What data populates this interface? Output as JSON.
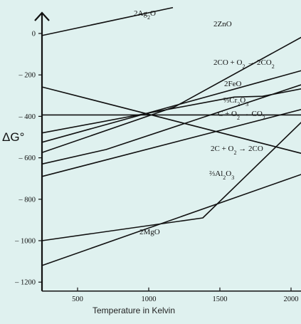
{
  "chart_data": {
    "type": "line",
    "title": "",
    "xlabel": "Temperature in Kelvin",
    "ylabel": "ΔG°",
    "xlim": [
      250,
      2380
    ],
    "ylim": [
      -1250,
      80
    ],
    "xticks": [
      500,
      1000,
      1500,
      2000
    ],
    "xtick_labels": [
      "500",
      "1000",
      "1500",
      "2000"
    ],
    "yticks": [
      0,
      -200,
      -400,
      -600,
      -800,
      -1000,
      -1200
    ],
    "ytick_labels": [
      "0",
      "– 200",
      "– 400",
      "– 600",
      "– 800",
      "– 1000",
      "– 1200"
    ],
    "grid": false,
    "series": [
      {
        "name": "2Ag₂O",
        "label_html": "2Ag<tspan baseline-shift=\"sub\" font-size=\"8\">2</tspan>O",
        "x": [
          250,
          1170
        ],
        "y": [
          -10,
          125
        ]
      },
      {
        "name": "2ZnO",
        "label_html": "2ZnO",
        "x": [
          250,
          1180,
          2280
        ],
        "y": [
          -575,
          -355,
          60
        ]
      },
      {
        "name": "2CO + O₂ → 2CO₂",
        "label_html": "2CO + O<tspan baseline-shift=\"sub\" font-size=\"8\">2</tspan> → 2CO<tspan baseline-shift=\"sub\" font-size=\"8\">2</tspan>",
        "x": [
          250,
          2280
        ],
        "y": [
          -525,
          -140
        ]
      },
      {
        "name": "2FeO",
        "label_html": "2FeO",
        "x": [
          250,
          1600,
          1800,
          2280
        ],
        "y": [
          -480,
          -307,
          -303,
          -240
        ]
      },
      {
        "name": "⅔Cr₂O₃",
        "label_html": "⅔Cr<tspan baseline-shift=\"sub\" font-size=\"8\">2</tspan>O<tspan baseline-shift=\"sub\" font-size=\"8\">3</tspan>",
        "x": [
          250,
          2280
        ],
        "y": [
          -690,
          -330
        ]
      },
      {
        "name": "C + O₂ → CO₂",
        "label_html": "C + O<tspan baseline-shift=\"sub\" font-size=\"8\">2</tspan> → CO<tspan baseline-shift=\"sub\" font-size=\"8\">2</tspan>",
        "x": [
          250,
          2280
        ],
        "y": [
          -393,
          -393
        ]
      },
      {
        "name": "2C + O₂ → 2CO",
        "label_html": "2C + O<tspan baseline-shift=\"sub\" font-size=\"8\">2</tspan> → 2CO",
        "x": [
          250,
          2280
        ],
        "y": [
          -258,
          -615
        ]
      },
      {
        "name": "⅔Al₂O₃",
        "label_html": "⅔Al<tspan baseline-shift=\"sub\" font-size=\"8\">2</tspan>O<tspan baseline-shift=\"sub\" font-size=\"8\">3</tspan>",
        "x": [
          250,
          2280
        ],
        "y": [
          -1120,
          -630
        ]
      },
      {
        "name": "2MgO",
        "label_html": "2MgO",
        "x": [
          250,
          1380,
          2280
        ],
        "y": [
          -1000,
          -890,
          -290
        ]
      },
      {
        "name": "",
        "label_html": "",
        "x": [
          250,
          700,
          2280
        ],
        "y": [
          -630,
          -560,
          -200
        ]
      }
    ]
  }
}
